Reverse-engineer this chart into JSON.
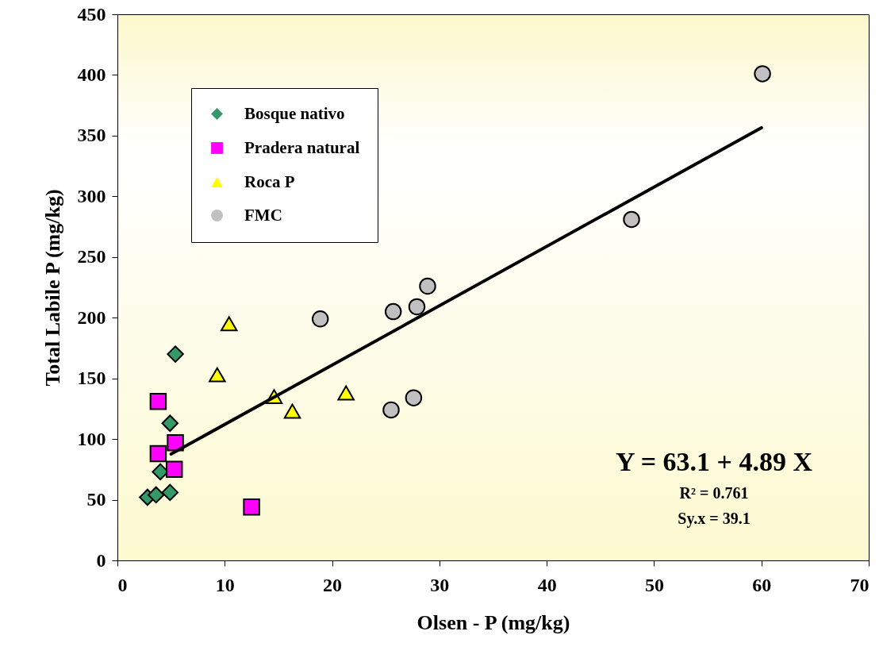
{
  "chart_data": {
    "type": "scatter",
    "xlabel": "Olsen - P (mg/kg)",
    "ylabel": "Total Labile P (mg/kg)",
    "xlim": [
      0,
      70
    ],
    "xticks": [
      0,
      10,
      20,
      30,
      40,
      50,
      60,
      70
    ],
    "ylim": [
      0,
      450
    ],
    "yticks": [
      0,
      50,
      100,
      150,
      200,
      250,
      300,
      350,
      400,
      450
    ],
    "grid": false,
    "legend": "top left",
    "series": [
      {
        "name": "Bosque nativo",
        "color": "#339966",
        "marker": "diamond",
        "x": [
          5.4,
          4.9,
          4.0,
          2.8,
          3.6,
          4.9
        ],
        "values": [
          170,
          113,
          73,
          52,
          54,
          56
        ]
      },
      {
        "name": "Pradera natural",
        "color": "#ff00ff",
        "marker": "square",
        "x": [
          3.8,
          5.4,
          3.8,
          5.3,
          12.5
        ],
        "values": [
          131,
          97,
          88,
          75,
          44
        ]
      },
      {
        "name": "Roca P",
        "color": "#ffff00",
        "marker": "triangle",
        "x": [
          10.4,
          9.3,
          14.6,
          16.3,
          21.3
        ],
        "values": [
          195,
          153,
          135,
          123,
          138
        ]
      },
      {
        "name": "FMC",
        "color": "#c0c0c0",
        "marker": "circle",
        "x": [
          18.9,
          25.7,
          27.9,
          28.9,
          25.5,
          27.6,
          47.9,
          60.1
        ],
        "values": [
          199,
          205,
          209,
          226,
          124,
          134,
          281,
          401
        ]
      },
      {
        "type": "line",
        "color": "#000000",
        "x": [
          5,
          60
        ],
        "values": [
          87.6,
          356.5
        ]
      }
    ],
    "annotations": [
      "Y = 63.1 + 4.89 X",
      "R² = 0.761",
      "Sy.x = 39.1"
    ]
  }
}
